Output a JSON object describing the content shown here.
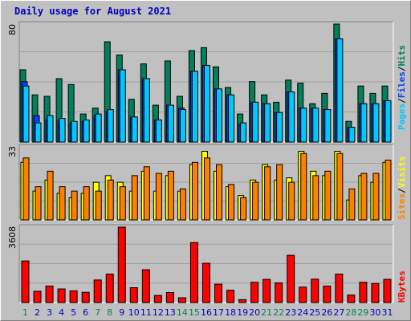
{
  "title": "Daily usage for August 2021",
  "colors": {
    "hits": "#00805c",
    "files": "#0040ff",
    "pages": "#00c8ff",
    "visits": "#ffff00",
    "sites": "#ff8000",
    "kbytes": "#ff0000",
    "weekend_day": "#00805c",
    "weekday_day": "#0000c0",
    "panel_bg": "#c0c0c0"
  },
  "chart_data": [
    {
      "type": "bar",
      "panel": "top",
      "ymax_label": "80",
      "ymax": 80,
      "categories": [
        "1",
        "2",
        "3",
        "4",
        "5",
        "6",
        "7",
        "8",
        "9",
        "10",
        "11",
        "12",
        "13",
        "14",
        "15",
        "16",
        "17",
        "18",
        "19",
        "20",
        "21",
        "22",
        "23",
        "24",
        "25",
        "26",
        "27",
        "28",
        "29",
        "30",
        "31"
      ],
      "series": [
        {
          "name": "Hits",
          "values": [
            49,
            32,
            31,
            43,
            39,
            19,
            23,
            68,
            59,
            29,
            53,
            25,
            55,
            31,
            62,
            64,
            51,
            37,
            19,
            41,
            32,
            27,
            42,
            40,
            26,
            33,
            80,
            14,
            38,
            33,
            38
          ]
        },
        {
          "name": "Files",
          "values": [
            41,
            18,
            15,
            15,
            13,
            14,
            18,
            21,
            49,
            17,
            43,
            15,
            25,
            23,
            48,
            52,
            36,
            32,
            12,
            27,
            26,
            20,
            34,
            23,
            23,
            22,
            70,
            10,
            26,
            26,
            28
          ]
        },
        {
          "name": "Pages",
          "values": [
            38,
            13,
            18,
            16,
            14,
            15,
            19,
            22,
            49,
            17,
            43,
            15,
            25,
            22,
            48,
            52,
            36,
            32,
            13,
            27,
            26,
            20,
            34,
            23,
            23,
            22,
            70,
            10,
            26,
            26,
            28
          ]
        }
      ],
      "legend": [
        "Pages",
        "/",
        "Files",
        "/",
        "Hits"
      ]
    },
    {
      "type": "bar",
      "panel": "middle",
      "ymax_label": "33",
      "ymax": 33,
      "categories": [
        "1",
        "2",
        "3",
        "4",
        "5",
        "6",
        "7",
        "8",
        "9",
        "10",
        "11",
        "12",
        "13",
        "14",
        "15",
        "16",
        "17",
        "18",
        "19",
        "20",
        "21",
        "22",
        "23",
        "24",
        "25",
        "26",
        "27",
        "28",
        "29",
        "30",
        "31"
      ],
      "series": [
        {
          "name": "Visits",
          "values": [
            26,
            13,
            18,
            12,
            10,
            12,
            17,
            20,
            17,
            13,
            22,
            13,
            20,
            13,
            25,
            31,
            22,
            15,
            11,
            18,
            25,
            18,
            19,
            31,
            22,
            20,
            31,
            9,
            20,
            17,
            26
          ]
        },
        {
          "name": "Sites",
          "values": [
            28,
            15,
            22,
            15,
            13,
            15,
            13,
            18,
            15,
            20,
            24,
            21,
            22,
            14,
            26,
            28,
            25,
            16,
            10,
            17,
            24,
            25,
            17,
            30,
            20,
            22,
            30,
            14,
            21,
            21,
            27
          ]
        }
      ],
      "legend": [
        "Sites",
        "/",
        "Visits"
      ]
    },
    {
      "type": "bar",
      "panel": "bottom",
      "ymax_label": "3608",
      "ymax": 3608,
      "categories": [
        "1",
        "2",
        "3",
        "4",
        "5",
        "6",
        "7",
        "8",
        "9",
        "10",
        "11",
        "12",
        "13",
        "14",
        "15",
        "16",
        "17",
        "18",
        "19",
        "20",
        "21",
        "22",
        "23",
        "24",
        "25",
        "26",
        "27",
        "28",
        "29",
        "30",
        "31"
      ],
      "series": [
        {
          "name": "KBytes",
          "values": [
            1990,
            540,
            790,
            650,
            560,
            490,
            1080,
            1360,
            3608,
            710,
            1570,
            340,
            480,
            230,
            2870,
            1880,
            880,
            590,
            140,
            970,
            1110,
            940,
            2260,
            740,
            1120,
            790,
            1360,
            360,
            970,
            910,
            1110
          ]
        }
      ],
      "legend": [
        "KBytes"
      ]
    }
  ],
  "weekend_days": [
    1,
    7,
    8,
    14,
    15,
    21,
    22,
    28,
    29
  ]
}
